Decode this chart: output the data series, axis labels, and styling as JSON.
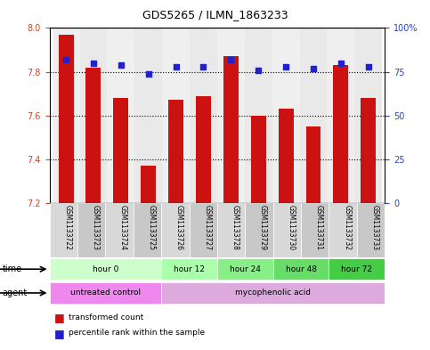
{
  "title": "GDS5265 / ILMN_1863233",
  "samples": [
    "GSM1133722",
    "GSM1133723",
    "GSM1133724",
    "GSM1133725",
    "GSM1133726",
    "GSM1133727",
    "GSM1133728",
    "GSM1133729",
    "GSM1133730",
    "GSM1133731",
    "GSM1133732",
    "GSM1133733"
  ],
  "bar_values": [
    7.97,
    7.82,
    7.68,
    7.37,
    7.67,
    7.69,
    7.87,
    7.6,
    7.63,
    7.55,
    7.83,
    7.68
  ],
  "percentile_values": [
    82,
    80,
    79,
    74,
    78,
    78,
    82,
    76,
    78,
    77,
    80,
    78
  ],
  "ylim_left": [
    7.2,
    8.0
  ],
  "ylim_right": [
    0,
    100
  ],
  "yticks_left": [
    7.2,
    7.4,
    7.6,
    7.8,
    8.0
  ],
  "yticks_right": [
    0,
    25,
    50,
    75,
    100
  ],
  "ytick_labels_right": [
    "0",
    "25",
    "50",
    "75",
    "100%"
  ],
  "bar_color": "#cc1111",
  "percentile_color": "#2222cc",
  "grid_color": "black",
  "time_groups": [
    {
      "label": "hour 0",
      "start": 0,
      "end": 4,
      "color": "#ccffcc"
    },
    {
      "label": "hour 12",
      "start": 4,
      "end": 6,
      "color": "#aaffaa"
    },
    {
      "label": "hour 24",
      "start": 6,
      "end": 8,
      "color": "#88ee88"
    },
    {
      "label": "hour 48",
      "start": 8,
      "end": 10,
      "color": "#66dd66"
    },
    {
      "label": "hour 72",
      "start": 10,
      "end": 12,
      "color": "#44cc44"
    }
  ],
  "agent_groups": [
    {
      "label": "untreated control",
      "start": 0,
      "end": 4,
      "color": "#ee88ee"
    },
    {
      "label": "mycophenolic acid",
      "start": 4,
      "end": 12,
      "color": "#ddaadd"
    }
  ],
  "legend_bar_label": "transformed count",
  "legend_pct_label": "percentile rank within the sample",
  "time_label": "time",
  "agent_label": "agent",
  "bg_color": "#ffffff",
  "bar_width": 0.55
}
